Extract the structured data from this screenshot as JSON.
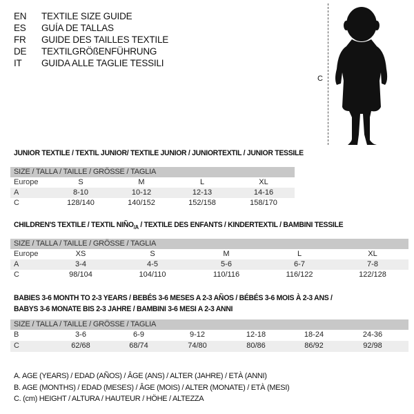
{
  "languages": [
    {
      "code": "EN",
      "text": "TEXTILE SIZE GUIDE"
    },
    {
      "code": "ES",
      "text": "GUÍA DE TALLAS"
    },
    {
      "code": "FR",
      "text": "GUIDE DES TAILLES TEXTILE"
    },
    {
      "code": "DE",
      "text": "TEXTILGRÖßENFÜHRUNG"
    },
    {
      "code": "IT",
      "text": "GUIDA ALLE TAGLIE TESSILI"
    }
  ],
  "figure": {
    "height_label": "C",
    "icon": "baby-silhouette"
  },
  "junior": {
    "title": "JUNIOR TEXTILE / TEXTIL JUNIOR/ TEXTILE JUNIOR / JUNIORTEXTIL / JUNIOR TESSILE",
    "header": "SIZE / TALLA / TAILLE / GRÖSSE / TAGLIA",
    "rows": [
      {
        "label": "Europe",
        "cells": [
          "S",
          "M",
          "L",
          "XL"
        ]
      },
      {
        "label": "A",
        "cells": [
          "8-10",
          "10-12",
          "12-13",
          "14-16"
        ]
      },
      {
        "label": "C",
        "cells": [
          "128/140",
          "140/152",
          "152/158",
          "158/170"
        ]
      }
    ]
  },
  "children": {
    "title": "CHILDREN'S TEXTILE / TEXTIL NIÑO/A / TEXTILE DES ENFANTS / KINDERTEXTIL / BAMBINI TESSILE",
    "header": "SIZE / TALLA / TAILLE / GRÖSSE / TAGLIA",
    "rows": [
      {
        "label": "Europe",
        "cells": [
          "XS",
          "S",
          "M",
          "L",
          "XL"
        ]
      },
      {
        "label": "A",
        "cells": [
          "3-4",
          "4-5",
          "5-6",
          "6-7",
          "7-8"
        ]
      },
      {
        "label": "C",
        "cells": [
          "98/104",
          "104/110",
          "110/116",
          "116/122",
          "122/128"
        ]
      }
    ]
  },
  "babies": {
    "title_line1": "BABIES 3-6 MONTH TO 2-3 YEARS / BEBÉS 3-6 MESES A 2-3 AÑOS / BÉBÉS 3-6 MOIS À 2-3 ANS /",
    "title_line2": "BABYS 3-6 MONATE BIS 2-3 JAHRE / BAMBINI 3-6 MESI A 2-3 ANNI",
    "header": "SIZE / TALLA / TAILLE / GRÖSSE / TAGLIA",
    "rows": [
      {
        "label": "B",
        "cells": [
          "3-6",
          "6-9",
          "9-12",
          "12-18",
          "18-24",
          "24-36"
        ]
      },
      {
        "label": "C",
        "cells": [
          "62/68",
          "68/74",
          "74/80",
          "80/86",
          "86/92",
          "92/98"
        ]
      }
    ]
  },
  "legend": [
    "A. AGE (YEARS) / EDAD (AÑOS) / ÂGE (ANS) / ALTER (JAHRE) / ETÀ (ANNI)",
    "B. AGE (MONTHS) / EDAD (MESES) / ÂGE (MOIS) / ALTER (MONATE) / ETÀ (MESI)",
    "C. (cm) HEIGHT / ALTURA / HAUTEUR / HÖHE / ALTEZZA"
  ]
}
